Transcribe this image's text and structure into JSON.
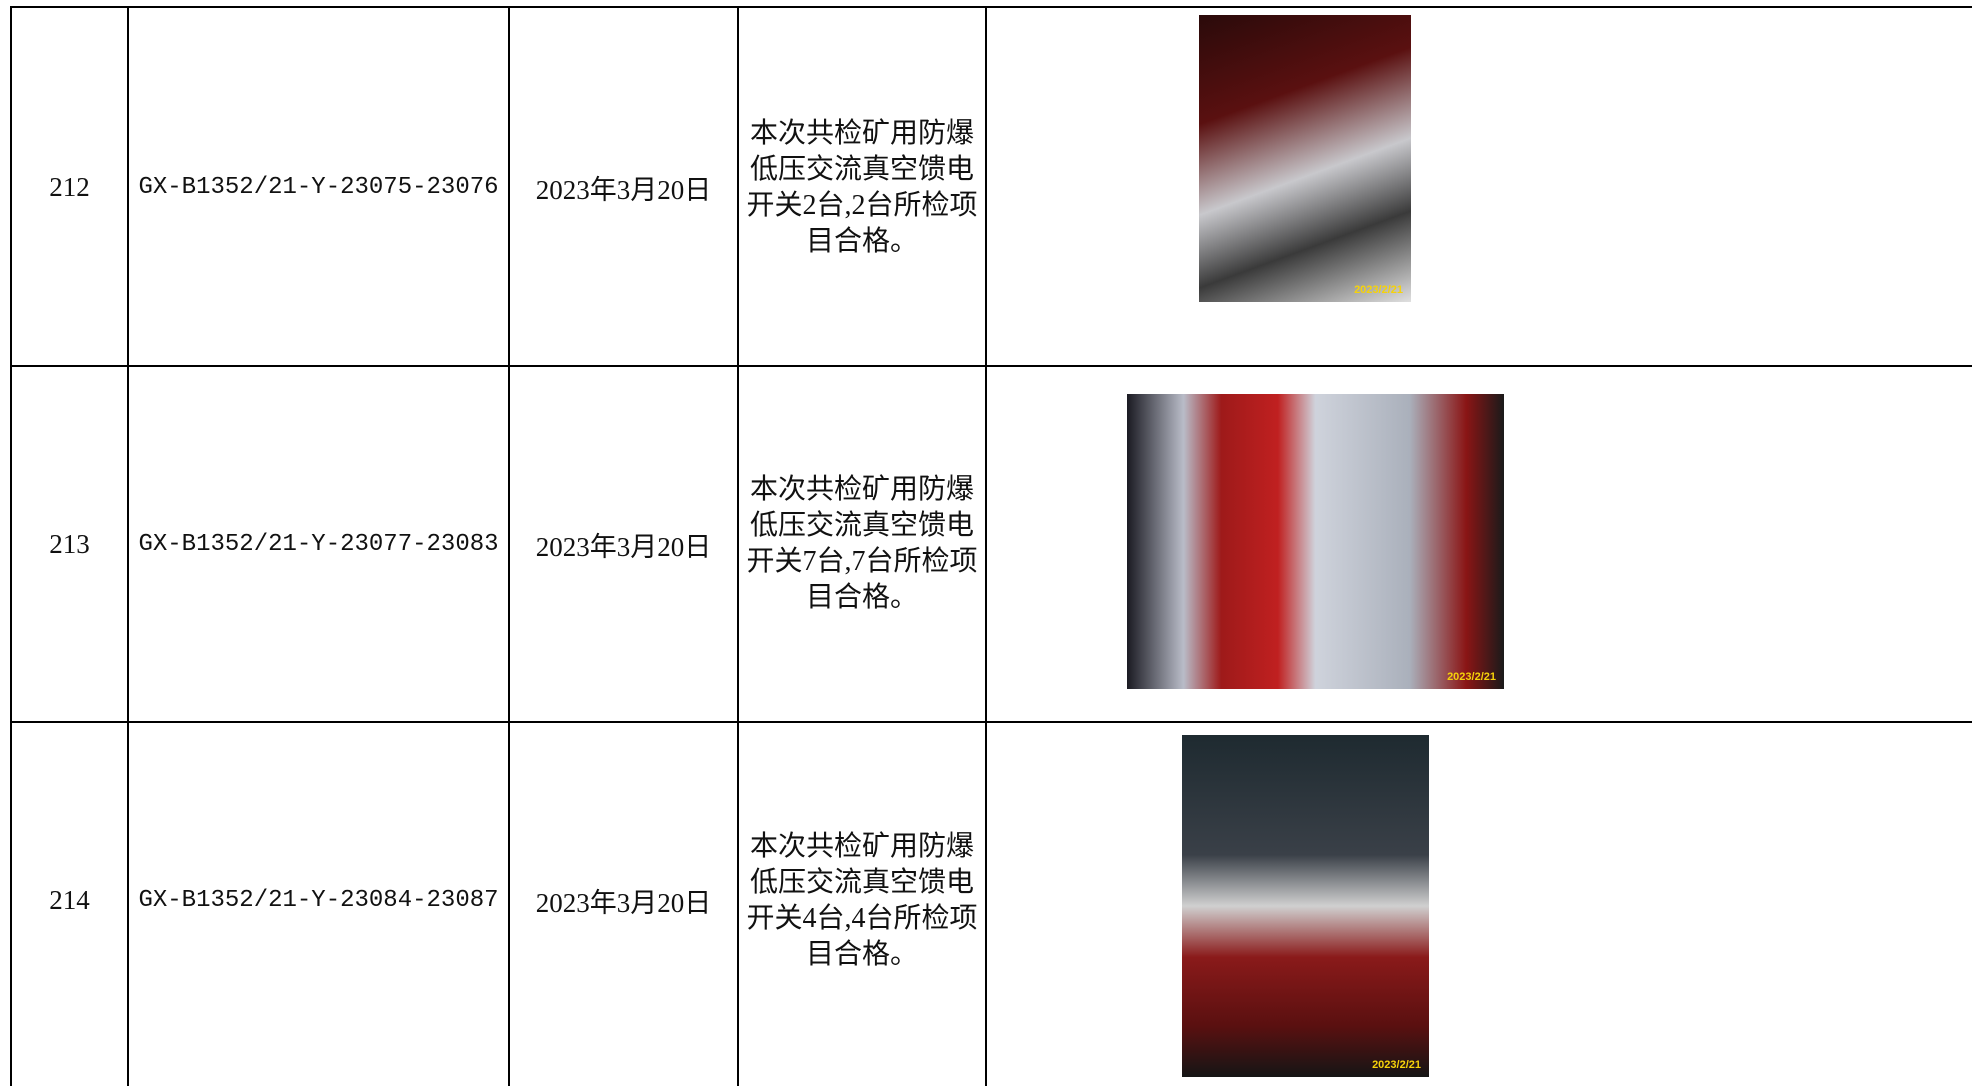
{
  "table": {
    "rows": [
      {
        "number": "212",
        "code": "GX-B1352/21-Y-23075-23076",
        "date": "2023年3月20日",
        "description": "本次共检矿用防爆低压交流真空馈电开关2台,2台所检项目合格。",
        "photo_stamp": "2023/2/21"
      },
      {
        "number": "213",
        "code": "GX-B1352/21-Y-23077-23083",
        "date": "2023年3月20日",
        "description": "本次共检矿用防爆低压交流真空馈电开关7台,7台所检项目合格。",
        "photo_stamp": "2023/2/21"
      },
      {
        "number": "214",
        "code": "GX-B1352/21-Y-23084-23087",
        "date": "2023年3月20日",
        "description": "本次共检矿用防爆低压交流真空馈电开关4台,4台所检项目合格。",
        "photo_stamp": "2023/2/21"
      }
    ]
  }
}
